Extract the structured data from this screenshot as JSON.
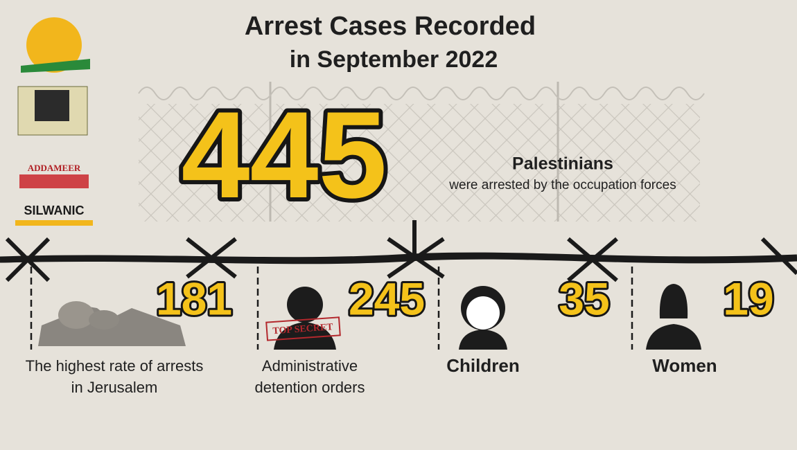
{
  "header": {
    "title_lines": [
      "Arrest Cases Recorded",
      "in September 2022"
    ]
  },
  "logos": [
    "ADDAMEER",
    "SILWANIC"
  ],
  "headline": {
    "value": 445,
    "noun": "Palestinians",
    "text": "were arrested by the occupation forces"
  },
  "stats": [
    {
      "value": 181,
      "label_lines": [
        "The highest rate of arrests",
        "in Jerusalem"
      ]
    },
    {
      "value": 245,
      "label_lines": [
        "Administrative",
        "detention orders"
      ]
    },
    {
      "value": 35,
      "label_lines": [
        "Children"
      ]
    },
    {
      "value": 19,
      "label_lines": [
        "Women"
      ]
    }
  ],
  "stamp": "TOP SECRET"
}
